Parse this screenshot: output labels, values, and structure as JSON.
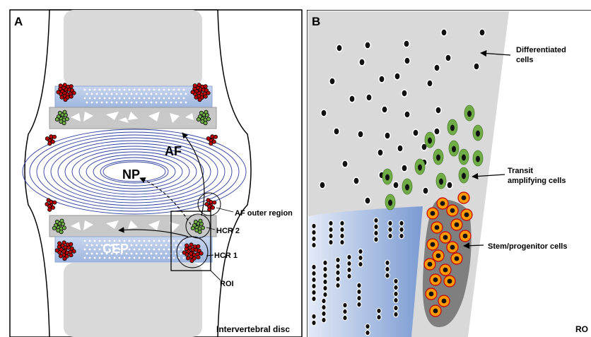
{
  "panel_a": {
    "letter": "A",
    "labels": {
      "np": "NP",
      "af": "AF",
      "cep": "CEP",
      "af_outer_region": "AF outer region",
      "hcr2": "HCR 2",
      "hcr1": "HCR 1",
      "roi": "ROI",
      "intervertebral_disc": "Intervertebral disc"
    }
  },
  "panel_b": {
    "letter": "B",
    "labels": {
      "differentiated_line1": "Differentiated",
      "differentiated_line2": "cells",
      "transit_line1": "Transit",
      "transit_line2": "amplifying cells",
      "stem": "Stem/progenitor cells",
      "roi_partial": "RO"
    }
  },
  "colors": {
    "vertebra": "#d9d9d9",
    "endplate_blue": "#b4c7e7",
    "cartilage_gray": "#c8c8c8",
    "lamellae": "#2f3f9e",
    "red_cells": "#c00000",
    "green_cells": "#70ad47",
    "stem_fill": "#ff9900",
    "stem_ring": "#c00000",
    "niche": "#7f7f7f"
  }
}
